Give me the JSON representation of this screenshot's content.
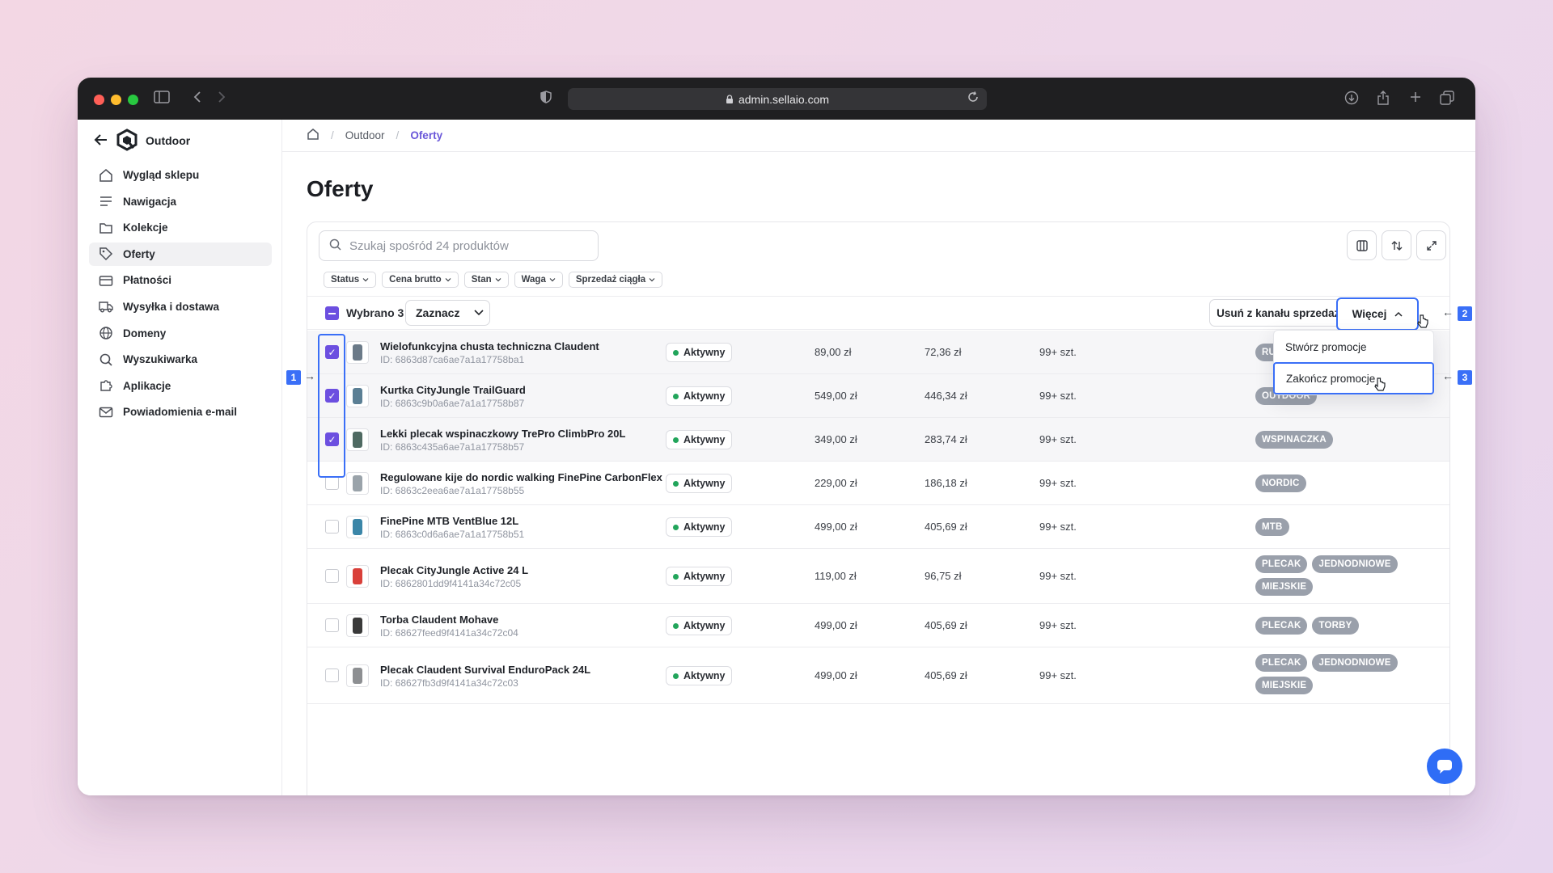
{
  "browser": {
    "url": "admin.sellaio.com"
  },
  "shop": {
    "name": "Outdoor"
  },
  "sidebar": {
    "items": [
      {
        "label": "Wygląd sklepu",
        "icon": "home-icon"
      },
      {
        "label": "Nawigacja",
        "icon": "menu-icon"
      },
      {
        "label": "Kolekcje",
        "icon": "folder-icon"
      },
      {
        "label": "Oferty",
        "icon": "tag-icon",
        "active": true
      },
      {
        "label": "Płatności",
        "icon": "card-icon"
      },
      {
        "label": "Wysyłka i dostawa",
        "icon": "truck-icon"
      },
      {
        "label": "Domeny",
        "icon": "globe-icon"
      },
      {
        "label": "Wyszukiwarka",
        "icon": "search-icon"
      },
      {
        "label": "Aplikacje",
        "icon": "puzzle-icon"
      },
      {
        "label": "Powiadomienia e-mail",
        "icon": "mail-icon"
      }
    ]
  },
  "breadcrumb": {
    "items": [
      "Outdoor",
      "Oferty"
    ]
  },
  "page": {
    "title": "Oferty"
  },
  "search": {
    "placeholder": "Szukaj spośród 24 produktów"
  },
  "filters": [
    "Status",
    "Cena brutto",
    "Stan",
    "Waga",
    "Sprzedaż ciągła"
  ],
  "bulk": {
    "selected_label": "Wybrano 3",
    "select_button": "Zaznacz",
    "remove_button": "Usuń z kanału sprzedaży",
    "more_button": "Więcej"
  },
  "dropdown": {
    "items": [
      "Stwórz promocje",
      "Zakończ promocje"
    ]
  },
  "markers": [
    "1",
    "2",
    "3"
  ],
  "colors": {
    "accent": "#6c4fe0",
    "highlight": "#3a6ff7",
    "status_active": "#22a55b",
    "tag_bg": "#9aa0ab"
  },
  "products": [
    {
      "name": "Wielofunkcyjna chusta techniczna Claudent",
      "id": "ID: 6863d87ca6ae7a1a17758ba1",
      "status": "Aktywny",
      "price": "89,00 zł",
      "net": "72,36 zł",
      "stock": "99+ szt.",
      "tags": [
        "RU"
      ],
      "selected": true
    },
    {
      "name": "Kurtka CityJungle TrailGuard",
      "id": "ID: 6863c9b0a6ae7a1a17758b87",
      "status": "Aktywny",
      "price": "549,00 zł",
      "net": "446,34 zł",
      "stock": "99+ szt.",
      "tags": [
        "OUTDOOR"
      ],
      "selected": true
    },
    {
      "name": "Lekki plecak wspinaczkowy TrePro ClimbPro 20L",
      "id": "ID: 6863c435a6ae7a1a17758b57",
      "status": "Aktywny",
      "price": "349,00 zł",
      "net": "283,74 zł",
      "stock": "99+ szt.",
      "tags": [
        "WSPINACZKA"
      ],
      "selected": true
    },
    {
      "name": "Regulowane kije do nordic walking FinePine CarbonFlex",
      "id": "ID: 6863c2eea6ae7a1a17758b55",
      "status": "Aktywny",
      "price": "229,00 zł",
      "net": "186,18 zł",
      "stock": "99+ szt.",
      "tags": [
        "NORDIC"
      ],
      "selected": false
    },
    {
      "name": "FinePine MTB VentBlue 12L",
      "id": "ID: 6863c0d6a6ae7a1a17758b51",
      "status": "Aktywny",
      "price": "499,00 zł",
      "net": "405,69 zł",
      "stock": "99+ szt.",
      "tags": [
        "MTB"
      ],
      "selected": false
    },
    {
      "name": "Plecak CityJungle Active 24 L",
      "id": "ID: 6862801dd9f4141a34c72c05",
      "status": "Aktywny",
      "price": "119,00 zł",
      "net": "96,75 zł",
      "stock": "99+ szt.",
      "tags": [
        "PLECAK",
        "JEDNODNIOWE",
        "MIEJSKIE"
      ],
      "selected": false
    },
    {
      "name": "Torba Claudent Mohave",
      "id": "ID: 68627feed9f4141a34c72c04",
      "status": "Aktywny",
      "price": "499,00 zł",
      "net": "405,69 zł",
      "stock": "99+ szt.",
      "tags": [
        "PLECAK",
        "TORBY"
      ],
      "selected": false
    },
    {
      "name": "Plecak Claudent Survival EnduroPack 24L",
      "id": "ID: 68627fb3d9f4141a34c72c03",
      "status": "Aktywny",
      "price": "499,00 zł",
      "net": "405,69 zł",
      "stock": "99+ szt.",
      "tags": [
        "PLECAK",
        "JEDNODNIOWE",
        "MIEJSKIE"
      ],
      "selected": false
    }
  ]
}
